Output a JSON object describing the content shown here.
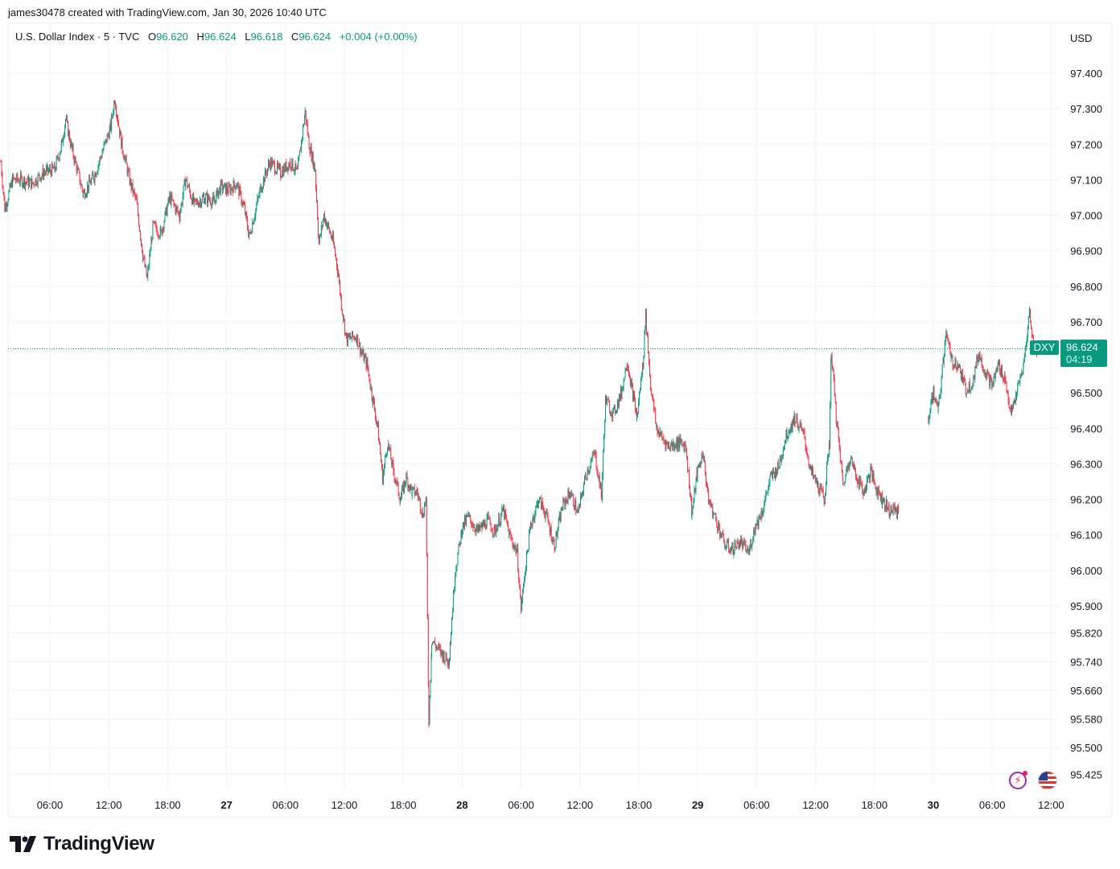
{
  "header": {
    "attribution": "james30478 created with TradingView.com, Jan 30, 2026 10:40 UTC"
  },
  "legend": {
    "symbol": "U.S. Dollar Index · 5 · TVC",
    "open_label": "O",
    "open": "96.620",
    "high_label": "H",
    "high": "96.624",
    "low_label": "L",
    "low": "96.618",
    "close_label": "C",
    "close": "96.624",
    "change": "+0.004 (+0.00%)"
  },
  "currency": "USD",
  "last_price": {
    "ticker": "DXY",
    "price": "96.624",
    "countdown": "04:19",
    "value": 96.624
  },
  "brand": {
    "name": "TradingView",
    "logo_icon": "tradingview-logo-icon"
  },
  "icons": [
    "lightning-alert-icon",
    "us-flag-icon"
  ],
  "colors": {
    "up": "#089981",
    "down": "#f23645",
    "grid": "#f0f3fa",
    "accent": "#089981"
  },
  "chart_data": {
    "type": "candlestick",
    "title": "U.S. Dollar Index",
    "interval": "5",
    "scale": "non-linear (two regimes)",
    "ylim": [
      95.425,
      97.4
    ],
    "y_ticks": [
      "97.400",
      "97.300",
      "97.200",
      "97.100",
      "97.000",
      "96.900",
      "96.800",
      "96.700",
      "96.500",
      "96.400",
      "96.300",
      "96.200",
      "96.100",
      "96.000",
      "95.900",
      "95.820",
      "95.740",
      "95.660",
      "95.580",
      "95.500",
      "95.425"
    ],
    "x_ticks": [
      {
        "label": "06:00",
        "t": 6,
        "bold": false
      },
      {
        "label": "12:00",
        "t": 12,
        "bold": false
      },
      {
        "label": "18:00",
        "t": 18,
        "bold": false
      },
      {
        "label": "27",
        "t": 24,
        "bold": true
      },
      {
        "label": "06:00",
        "t": 30,
        "bold": false
      },
      {
        "label": "12:00",
        "t": 36,
        "bold": false
      },
      {
        "label": "18:00",
        "t": 42,
        "bold": false
      },
      {
        "label": "28",
        "t": 48,
        "bold": true
      },
      {
        "label": "06:00",
        "t": 54,
        "bold": false
      },
      {
        "label": "12:00",
        "t": 60,
        "bold": false
      },
      {
        "label": "18:00",
        "t": 66,
        "bold": false
      },
      {
        "label": "29",
        "t": 72,
        "bold": true
      },
      {
        "label": "06:00",
        "t": 78,
        "bold": false
      },
      {
        "label": "12:00",
        "t": 84,
        "bold": false
      },
      {
        "label": "18:00",
        "t": 90,
        "bold": false
      },
      {
        "label": "30",
        "t": 96,
        "bold": true
      },
      {
        "label": "06:00",
        "t": 102,
        "bold": false
      },
      {
        "label": "12:00",
        "t": 108,
        "bold": false
      }
    ],
    "price_path": [
      [
        1.0,
        97.15
      ],
      [
        1.4,
        97.02
      ],
      [
        2.2,
        97.1
      ],
      [
        3.0,
        97.1
      ],
      [
        4.2,
        97.09
      ],
      [
        5.3,
        97.12
      ],
      [
        6.5,
        97.13
      ],
      [
        7.2,
        97.2
      ],
      [
        7.6,
        97.27
      ],
      [
        8.3,
        97.18
      ],
      [
        9.4,
        97.06
      ],
      [
        10.5,
        97.11
      ],
      [
        11.0,
        97.15
      ],
      [
        12.2,
        97.25
      ],
      [
        12.6,
        97.33
      ],
      [
        13.3,
        97.2
      ],
      [
        14.2,
        97.09
      ],
      [
        14.8,
        97.04
      ],
      [
        15.5,
        96.88
      ],
      [
        15.9,
        96.82
      ],
      [
        16.5,
        96.97
      ],
      [
        17.3,
        96.95
      ],
      [
        18.2,
        97.05
      ],
      [
        19.2,
        97.0
      ],
      [
        19.8,
        97.1
      ],
      [
        20.7,
        97.03
      ],
      [
        21.7,
        97.05
      ],
      [
        22.7,
        97.04
      ],
      [
        23.4,
        97.08
      ],
      [
        24.2,
        97.07
      ],
      [
        25.0,
        97.09
      ],
      [
        25.8,
        97.02
      ],
      [
        26.3,
        96.94
      ],
      [
        27.5,
        97.08
      ],
      [
        28.4,
        97.15
      ],
      [
        29.5,
        97.12
      ],
      [
        30.5,
        97.15
      ],
      [
        31.2,
        97.12
      ],
      [
        32.0,
        97.29
      ],
      [
        32.4,
        97.2
      ],
      [
        33.0,
        97.13
      ],
      [
        33.4,
        96.92
      ],
      [
        33.9,
        97.0
      ],
      [
        34.8,
        96.93
      ],
      [
        35.3,
        96.85
      ],
      [
        35.7,
        96.75
      ],
      [
        36.2,
        96.65
      ],
      [
        37.2,
        96.66
      ],
      [
        37.8,
        96.61
      ],
      [
        38.3,
        96.58
      ],
      [
        38.9,
        96.48
      ],
      [
        39.4,
        96.4
      ],
      [
        39.9,
        96.26
      ],
      [
        40.4,
        96.36
      ],
      [
        41.0,
        96.28
      ],
      [
        41.7,
        96.2
      ],
      [
        42.3,
        96.26
      ],
      [
        42.9,
        96.22
      ],
      [
        43.4,
        96.22
      ],
      [
        44.0,
        96.16
      ],
      [
        44.3,
        96.2
      ],
      [
        44.6,
        95.58
      ],
      [
        44.9,
        95.8
      ],
      [
        45.4,
        95.78
      ],
      [
        46.0,
        95.76
      ],
      [
        46.6,
        95.74
      ],
      [
        46.7,
        95.76
      ],
      [
        47.3,
        96.0
      ],
      [
        48.0,
        96.12
      ],
      [
        48.6,
        96.15
      ],
      [
        49.6,
        96.11
      ],
      [
        50.6,
        96.14
      ],
      [
        51.3,
        96.11
      ],
      [
        52.2,
        96.17
      ],
      [
        52.8,
        96.1
      ],
      [
        53.6,
        96.05
      ],
      [
        54.0,
        95.89
      ],
      [
        54.4,
        96.0
      ],
      [
        55.0,
        96.13
      ],
      [
        55.8,
        96.2
      ],
      [
        56.5,
        96.16
      ],
      [
        57.4,
        96.07
      ],
      [
        58.2,
        96.18
      ],
      [
        59.0,
        96.22
      ],
      [
        59.8,
        96.16
      ],
      [
        60.6,
        96.27
      ],
      [
        61.5,
        96.33
      ],
      [
        62.2,
        96.21
      ],
      [
        62.6,
        96.48
      ],
      [
        63.4,
        96.44
      ],
      [
        64.2,
        96.5
      ],
      [
        64.8,
        96.59
      ],
      [
        65.3,
        96.51
      ],
      [
        65.8,
        96.43
      ],
      [
        66.4,
        96.58
      ],
      [
        66.7,
        96.72
      ],
      [
        67.2,
        96.52
      ],
      [
        67.8,
        96.4
      ],
      [
        68.2,
        96.38
      ],
      [
        69.0,
        96.35
      ],
      [
        70.0,
        96.36
      ],
      [
        70.8,
        96.35
      ],
      [
        71.4,
        96.16
      ],
      [
        71.9,
        96.27
      ],
      [
        72.5,
        96.33
      ],
      [
        73.1,
        96.2
      ],
      [
        74.0,
        96.13
      ],
      [
        74.8,
        96.07
      ],
      [
        75.5,
        96.06
      ],
      [
        76.3,
        96.08
      ],
      [
        77.2,
        96.05
      ],
      [
        77.8,
        96.12
      ],
      [
        78.6,
        96.17
      ],
      [
        79.4,
        96.26
      ],
      [
        80.2,
        96.29
      ],
      [
        81.0,
        96.38
      ],
      [
        81.9,
        96.43
      ],
      [
        82.8,
        96.38
      ],
      [
        83.5,
        96.28
      ],
      [
        84.2,
        96.24
      ],
      [
        84.9,
        96.2
      ],
      [
        85.4,
        96.36
      ],
      [
        85.6,
        96.62
      ],
      [
        86.1,
        96.43
      ],
      [
        86.8,
        96.24
      ],
      [
        87.5,
        96.32
      ],
      [
        88.1,
        96.27
      ],
      [
        88.9,
        96.22
      ],
      [
        89.6,
        96.28
      ],
      [
        90.2,
        96.23
      ],
      [
        90.8,
        96.2
      ],
      [
        91.5,
        96.17
      ],
      [
        92.1,
        96.17
      ],
      [
        92.5,
        96.16
      ],
      [
        95.5,
        96.43
      ],
      [
        96.0,
        96.5
      ],
      [
        96.5,
        96.45
      ],
      [
        97.0,
        96.59
      ],
      [
        97.3,
        96.68
      ],
      [
        97.8,
        96.59
      ],
      [
        98.5,
        96.58
      ],
      [
        99.3,
        96.51
      ],
      [
        100.0,
        96.53
      ],
      [
        100.6,
        96.61
      ],
      [
        101.3,
        96.56
      ],
      [
        102.0,
        96.52
      ],
      [
        102.6,
        96.58
      ],
      [
        103.3,
        96.54
      ],
      [
        103.9,
        96.44
      ],
      [
        104.5,
        96.5
      ],
      [
        105.2,
        96.58
      ],
      [
        105.8,
        96.73
      ],
      [
        106.2,
        96.63
      ],
      [
        106.6,
        96.62
      ]
    ]
  }
}
